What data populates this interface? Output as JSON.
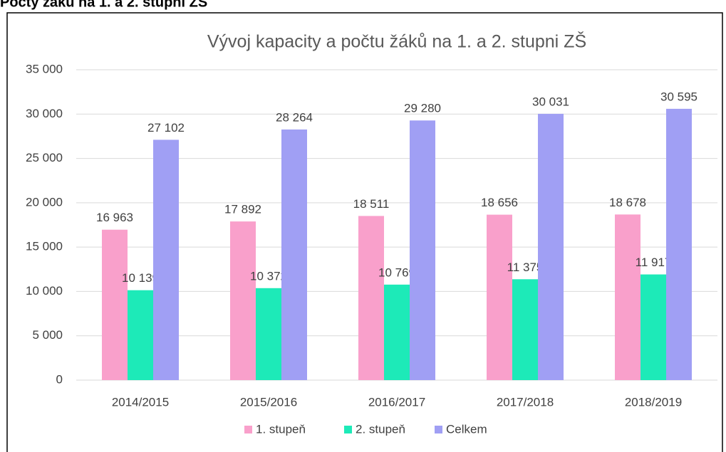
{
  "heading": "Počty žáků na 1. a 2. stupni ZŠ",
  "chart_data": {
    "type": "bar",
    "title": "Vývoj kapacity a počtu žáků na 1. a 2. stupni ZŠ",
    "categories": [
      "2014/2015",
      "2015/2016",
      "2016/2017",
      "2017/2018",
      "2018/2019"
    ],
    "series": [
      {
        "name": "1. stupeň",
        "color": "#f9a0cb",
        "values": [
          16963,
          17892,
          18511,
          18656,
          18678
        ],
        "value_labels": [
          "16 963",
          "17 892",
          "18 511",
          "18 656",
          "18 678"
        ]
      },
      {
        "name": "2. stupeň",
        "color": "#1deab8",
        "values": [
          10139,
          10372,
          10769,
          11375,
          11917
        ],
        "value_labels": [
          "10 139",
          "10 372",
          "10 769",
          "11 375",
          "11 917"
        ]
      },
      {
        "name": "Celkem",
        "color": "#a09ff4",
        "values": [
          27102,
          28264,
          29280,
          30031,
          30595
        ],
        "value_labels": [
          "27 102",
          "28 264",
          "29 280",
          "30 031",
          "30 595"
        ]
      }
    ],
    "ylim": [
      0,
      35000
    ],
    "yticks": [
      0,
      {
        "value": 5000,
        "label": "5 000"
      },
      {
        "value": 10000,
        "label": "10 000"
      },
      {
        "value": 15000,
        "label": "15 000"
      },
      {
        "value": 20000,
        "label": "20 000"
      },
      {
        "value": 25000,
        "label": "25 000"
      },
      {
        "value": 30000,
        "label": "30 000"
      },
      {
        "value": 35000,
        "label": "35 000"
      }
    ],
    "grid": true,
    "legend": "bottom"
  }
}
